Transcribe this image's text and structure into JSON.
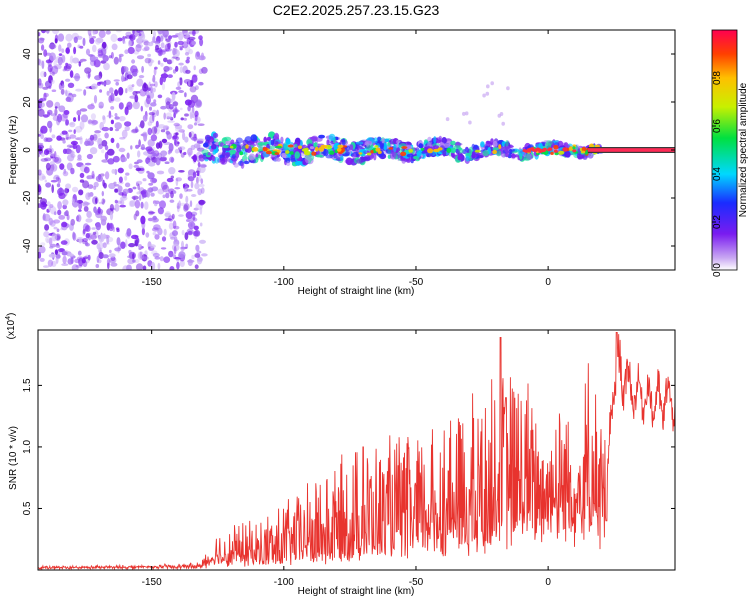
{
  "title": "C2E2.2025.257.23.15.G23",
  "colors": {
    "snr_line": "#e8332e",
    "trace": "#ff2a55",
    "trace_outline": "#3a3a3a"
  },
  "chart_data": [
    {
      "type": "heatmap",
      "xlabel": "Height of straight line (km)",
      "ylabel": "Frequency (Hz)",
      "xlim": [
        -193,
        48
      ],
      "ylim": [
        -50,
        50
      ],
      "xticks": [
        -150,
        -100,
        -50,
        0
      ],
      "xtick_labels": [
        "-150",
        "-100",
        "-50",
        "0"
      ],
      "yticks": [
        -40,
        -20,
        0,
        20,
        40
      ],
      "ytick_labels": [
        "-40",
        "-20",
        "0",
        "20",
        "40"
      ],
      "noise_region_x": [
        -193,
        -130
      ],
      "signal_region_x": [
        -130,
        48
      ],
      "trace_frequency_hz": 0,
      "colorbar": {
        "label": "Normalized spectral amplitude",
        "range": [
          0,
          1
        ],
        "ticks": [
          0,
          0.2,
          0.4,
          0.6,
          0.8
        ],
        "tick_labels": [
          "0.0",
          "0.2",
          "0.4",
          "0.6",
          "0.8"
        ]
      }
    },
    {
      "type": "line",
      "xlabel": "Height of straight line (km)",
      "ylabel": "SNR (10 * v/v)",
      "multiplier_label": "(x10",
      "multiplier_exp": "4",
      "multiplier_close": ")",
      "xlim": [
        -193,
        48
      ],
      "ylim": [
        0,
        1.95
      ],
      "xticks": [
        -150,
        -100,
        -50,
        0
      ],
      "xtick_labels": [
        "-150",
        "-100",
        "-50",
        "0"
      ],
      "yticks": [
        0.5,
        1.0,
        1.5
      ],
      "ytick_labels": [
        "0.5",
        "1.0",
        "1.5"
      ],
      "envelope": {
        "x": [
          -193,
          -150,
          -132,
          -130,
          -125,
          -110,
          -100,
          -85,
          -70,
          -55,
          -45,
          -30,
          -20,
          -15,
          -10,
          -5,
          0,
          5,
          10,
          15,
          20,
          22,
          25,
          28,
          32,
          38,
          42,
          48
        ],
        "base": [
          0.02,
          0.03,
          0.03,
          0.04,
          0.08,
          0.08,
          0.1,
          0.14,
          0.2,
          0.26,
          0.3,
          0.34,
          0.4,
          0.45,
          0.5,
          0.55,
          0.6,
          0.58,
          0.55,
          0.6,
          0.5,
          0.55,
          1.6,
          1.6,
          1.45,
          1.4,
          1.35,
          1.4
        ],
        "amp": [
          0.01,
          0.01,
          0.02,
          0.08,
          0.18,
          0.22,
          0.3,
          0.45,
          0.55,
          0.55,
          0.6,
          0.7,
          0.85,
          0.9,
          0.8,
          0.65,
          0.6,
          0.6,
          0.7,
          0.8,
          0.6,
          0.3,
          0.3,
          0.35,
          0.25,
          0.25,
          0.3,
          0.3
        ]
      },
      "peaks": [
        {
          "x": -70,
          "y": 1.0
        },
        {
          "x": -18,
          "y": 1.89
        },
        {
          "x": -16,
          "y": 1.4
        },
        {
          "x": 26,
          "y": 1.93
        },
        {
          "x": 22,
          "y": 0.4
        }
      ]
    }
  ]
}
